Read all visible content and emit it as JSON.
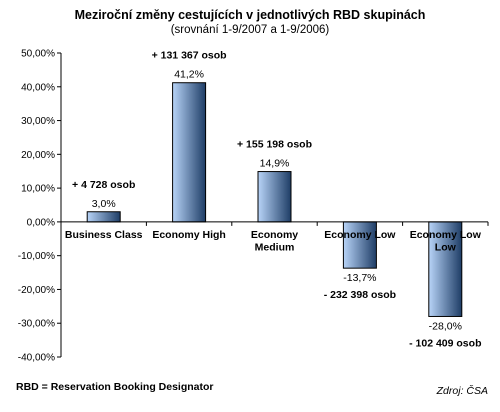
{
  "chart_data": {
    "type": "bar",
    "title": "Meziroční změny cestujících v jednotlivých RBD skupinách",
    "subtitle": "(srovnání 1-9/2007 a 1-9/2006)",
    "categories": [
      [
        "Business Class"
      ],
      [
        "Economy High"
      ],
      [
        "Economy",
        "Medium"
      ],
      [
        "Economy Low"
      ],
      [
        "Economy Low",
        "Low"
      ]
    ],
    "values": [
      3.0,
      41.2,
      14.9,
      -13.7,
      -28.0
    ],
    "value_labels": [
      "3,0%",
      "41,2%",
      "14,9%",
      "-13,7%",
      "-28,0%"
    ],
    "annotations": [
      "+ 4 728 osob",
      "+ 131 367 osob",
      "+ 155 198 osob",
      "- 232 398 osob",
      "- 102 409 osob"
    ],
    "ylim": [
      -40,
      50
    ],
    "yticks": [
      50,
      40,
      30,
      20,
      10,
      0,
      -10,
      -20,
      -30,
      -40
    ],
    "ytick_labels": [
      "50,00%",
      "40,00%",
      "30,00%",
      "20,00%",
      "10,00%",
      "0,00%",
      "-10,00%",
      "-20,00%",
      "-30,00%",
      "-40,00%"
    ],
    "grid": false,
    "colors": {
      "bar_light": "#b8d4f8",
      "bar_dark": "#1e3d66",
      "bar_stroke": "#000000",
      "axis": "#000000"
    }
  },
  "footer": {
    "note": "RBD = Reservation Booking Designator",
    "source": "Zdroj: ČSA"
  }
}
